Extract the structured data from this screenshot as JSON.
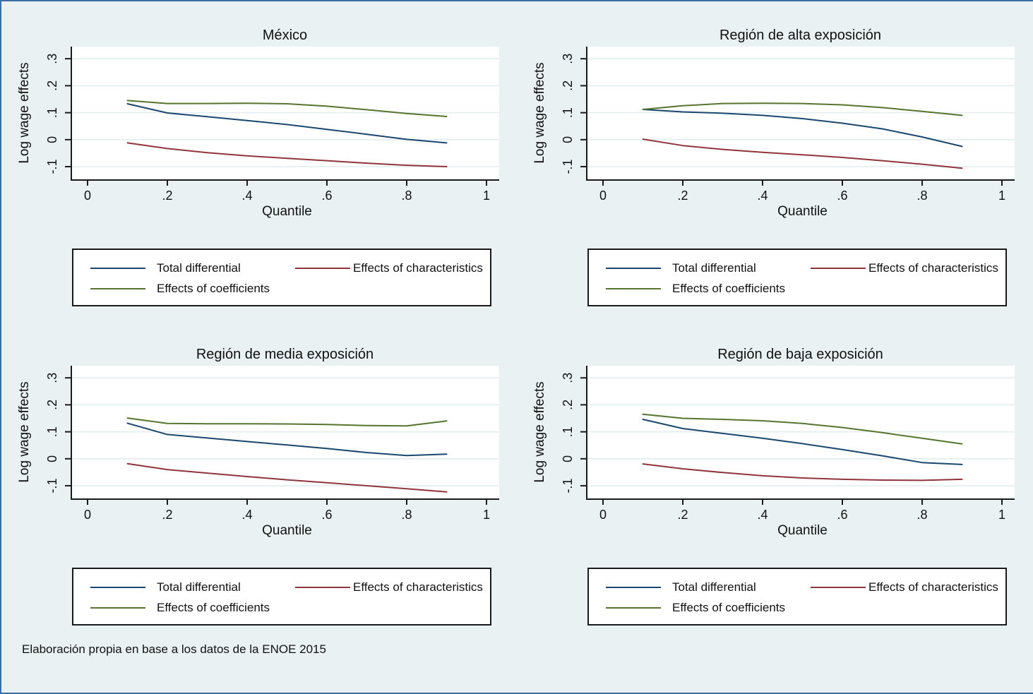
{
  "note": "Elaboración propia en base a los datos de la ENOE 2015",
  "colors": {
    "background": "#eaf1f3",
    "page_border": "#3a6ea5",
    "plot_background": "#ffffff",
    "gridline": "#e2edf0",
    "axis": "#1a1a1a",
    "navy": "#1a476f",
    "maroon": "#90353b",
    "green": "#55752f"
  },
  "legend": {
    "entries": [
      {
        "label": "Total differential",
        "color": "#1a476f"
      },
      {
        "label": "Effects of characteristics",
        "color": "#90353b"
      },
      {
        "label": "Effects of coefficients",
        "color": "#55752f"
      }
    ]
  },
  "chart_data": [
    {
      "type": "line",
      "title": "México",
      "xlabel": "Quantile",
      "ylabel": "Log wage effects",
      "xticks": [
        0,
        0.2,
        0.4,
        0.6,
        0.8,
        1
      ],
      "xtick_labels": [
        "0",
        ".2",
        ".4",
        ".6",
        ".8",
        "1"
      ],
      "yticks": [
        0.3,
        0.2,
        0.1,
        0,
        -0.1
      ],
      "ytick_labels": [
        ".3",
        ".2",
        ".1",
        "0",
        "-.1"
      ],
      "ylim": [
        -0.147,
        0.345
      ],
      "xlim": [
        -0.085,
        1.065
      ],
      "grid": true,
      "legend_position": "below",
      "x": [
        0.1,
        0.2,
        0.3,
        0.4,
        0.5,
        0.6,
        0.7,
        0.8,
        0.9
      ],
      "series": [
        {
          "name": "Total differential",
          "color": "#1a476f",
          "values": [
            0.133,
            0.099,
            0.085,
            0.071,
            0.056,
            0.038,
            0.02,
            0.001,
            -0.012
          ]
        },
        {
          "name": "Effects of characteristics",
          "color": "#90353b",
          "values": [
            -0.012,
            -0.033,
            -0.048,
            -0.06,
            -0.069,
            -0.078,
            -0.087,
            -0.095,
            -0.1
          ]
        },
        {
          "name": "Effects of coefficients",
          "color": "#55752f",
          "values": [
            0.145,
            0.134,
            0.134,
            0.135,
            0.133,
            0.124,
            0.111,
            0.097,
            0.086
          ]
        }
      ]
    },
    {
      "type": "line",
      "title": "Región de alta exposición",
      "xlabel": "Quantile",
      "ylabel": "Log wage effects",
      "xticks": [
        0,
        0.2,
        0.4,
        0.6,
        0.8,
        1
      ],
      "xtick_labels": [
        "0",
        ".2",
        ".4",
        ".6",
        ".8",
        "1"
      ],
      "yticks": [
        0.3,
        0.2,
        0.1,
        0,
        -0.1
      ],
      "ytick_labels": [
        ".3",
        ".2",
        ".1",
        "0",
        "-.1"
      ],
      "ylim": [
        -0.147,
        0.345
      ],
      "xlim": [
        -0.085,
        1.065
      ],
      "grid": true,
      "legend_position": "below",
      "x": [
        0.1,
        0.2,
        0.3,
        0.4,
        0.5,
        0.6,
        0.7,
        0.8,
        0.9
      ],
      "series": [
        {
          "name": "Total differential",
          "color": "#1a476f",
          "values": [
            0.112,
            0.103,
            0.098,
            0.09,
            0.078,
            0.061,
            0.04,
            0.01,
            -0.025
          ]
        },
        {
          "name": "Effects of characteristics",
          "color": "#90353b",
          "values": [
            0.002,
            -0.022,
            -0.036,
            -0.047,
            -0.056,
            -0.066,
            -0.078,
            -0.091,
            -0.106
          ]
        },
        {
          "name": "Effects of coefficients",
          "color": "#55752f",
          "values": [
            0.112,
            0.126,
            0.134,
            0.135,
            0.134,
            0.129,
            0.119,
            0.105,
            0.09
          ]
        }
      ]
    },
    {
      "type": "line",
      "title": "Región de media exposición",
      "xlabel": "Quantile",
      "ylabel": "Log wage effects",
      "xticks": [
        0,
        0.2,
        0.4,
        0.6,
        0.8,
        1
      ],
      "xtick_labels": [
        "0",
        ".2",
        ".4",
        ".6",
        ".8",
        "1"
      ],
      "yticks": [
        0.3,
        0.2,
        0.1,
        0,
        -0.1
      ],
      "ytick_labels": [
        ".3",
        ".2",
        ".1",
        "0",
        "-.1"
      ],
      "ylim": [
        -0.147,
        0.345
      ],
      "xlim": [
        -0.085,
        1.065
      ],
      "grid": true,
      "legend_position": "below",
      "x": [
        0.1,
        0.2,
        0.3,
        0.4,
        0.5,
        0.6,
        0.7,
        0.8,
        0.9
      ],
      "series": [
        {
          "name": "Total differential",
          "color": "#1a476f",
          "values": [
            0.132,
            0.09,
            0.077,
            0.064,
            0.051,
            0.038,
            0.023,
            0.012,
            0.017
          ]
        },
        {
          "name": "Effects of characteristics",
          "color": "#90353b",
          "values": [
            -0.018,
            -0.04,
            -0.053,
            -0.066,
            -0.078,
            -0.089,
            -0.1,
            -0.111,
            -0.123
          ]
        },
        {
          "name": "Effects of coefficients",
          "color": "#55752f",
          "values": [
            0.151,
            0.131,
            0.13,
            0.13,
            0.129,
            0.127,
            0.123,
            0.122,
            0.14
          ]
        }
      ]
    },
    {
      "type": "line",
      "title": "Región de baja exposición",
      "xlabel": "Quantile",
      "ylabel": "Log wage effects",
      "xticks": [
        0,
        0.2,
        0.4,
        0.6,
        0.8,
        1
      ],
      "xtick_labels": [
        "0",
        ".2",
        ".4",
        ".6",
        ".8",
        "1"
      ],
      "yticks": [
        0.3,
        0.2,
        0.1,
        0,
        -0.1
      ],
      "ytick_labels": [
        ".3",
        ".2",
        ".1",
        "0",
        "-.1"
      ],
      "ylim": [
        -0.147,
        0.345
      ],
      "xlim": [
        -0.085,
        1.065
      ],
      "grid": true,
      "legend_position": "below",
      "x": [
        0.1,
        0.2,
        0.3,
        0.4,
        0.5,
        0.6,
        0.7,
        0.8,
        0.9
      ],
      "series": [
        {
          "name": "Total differential",
          "color": "#1a476f",
          "values": [
            0.146,
            0.112,
            0.094,
            0.076,
            0.056,
            0.034,
            0.011,
            -0.014,
            -0.021
          ]
        },
        {
          "name": "Effects of characteristics",
          "color": "#90353b",
          "values": [
            -0.019,
            -0.037,
            -0.051,
            -0.063,
            -0.071,
            -0.076,
            -0.079,
            -0.08,
            -0.076
          ]
        },
        {
          "name": "Effects of coefficients",
          "color": "#55752f",
          "values": [
            0.165,
            0.15,
            0.146,
            0.141,
            0.131,
            0.116,
            0.097,
            0.076,
            0.055
          ]
        }
      ]
    }
  ]
}
